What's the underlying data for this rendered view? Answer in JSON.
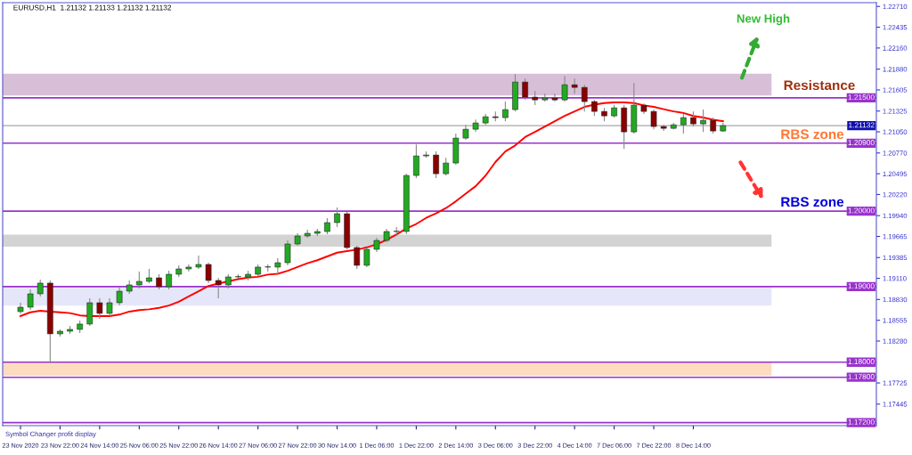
{
  "chart_data": {
    "type": "candlestick",
    "title": "EURUSD,H1  1.21132 1.21133 1.21132 1.21132",
    "categories": [
      "23 Nov 2020",
      null,
      null,
      null,
      "23 Nov 22:00",
      null,
      null,
      null,
      "24 Nov 14:00",
      null,
      null,
      null,
      "25 Nov 06:00",
      null,
      null,
      null,
      "25 Nov 22:00",
      null,
      null,
      null,
      "26 Nov 14:00",
      null,
      null,
      null,
      "27 Nov 06:00",
      null,
      null,
      null,
      "27 Nov 22:00",
      null,
      null,
      null,
      "30 Nov 14:00",
      null,
      null,
      null,
      "1 Dec 06:00",
      null,
      null,
      null,
      "1 Dec 22:00",
      null,
      null,
      null,
      "2 Dec 14:00",
      null,
      null,
      null,
      "3 Dec 06:00",
      null,
      null,
      null,
      "3 Dec 22:00",
      null,
      null,
      null,
      "4 Dec 14:00",
      null,
      null,
      null,
      "7 Dec 06:00",
      null,
      null,
      null,
      "7 Dec 22:00",
      null,
      null,
      null,
      "8 Dec 14:00",
      null,
      null,
      null,
      null,
      null,
      null,
      null,
      null,
      null,
      null,
      null,
      null,
      null,
      null,
      null,
      null,
      null,
      null
    ],
    "ohlc": [
      [
        1.1867,
        1.18787,
        1.18646,
        1.18728
      ],
      [
        1.18728,
        1.18964,
        1.18693,
        1.18905
      ],
      [
        1.18905,
        1.19094,
        1.1887,
        1.19047
      ],
      [
        1.19047,
        1.19082,
        1.17986,
        1.18375
      ],
      [
        1.18375,
        1.18434,
        1.1834,
        1.1841
      ],
      [
        1.1841,
        1.18481,
        1.18375,
        1.18434
      ],
      [
        1.18434,
        1.18552,
        1.18387,
        1.18505
      ],
      [
        1.18505,
        1.18846,
        1.18481,
        1.18787
      ],
      [
        1.18787,
        1.18846,
        1.18575,
        1.18646
      ],
      [
        1.18646,
        1.18846,
        1.18611,
        1.18787
      ],
      [
        1.18787,
        1.18999,
        1.18752,
        1.1894
      ],
      [
        1.1894,
        1.19082,
        1.18905,
        1.19023
      ],
      [
        1.19023,
        1.192,
        1.18976,
        1.1907
      ],
      [
        1.1907,
        1.19235,
        1.19047,
        1.19117
      ],
      [
        1.19117,
        1.19164,
        1.18964,
        1.18999
      ],
      [
        1.18999,
        1.19211,
        1.18964,
        1.19164
      ],
      [
        1.19164,
        1.19282,
        1.19129,
        1.19235
      ],
      [
        1.19235,
        1.19294,
        1.192,
        1.19259
      ],
      [
        1.19259,
        1.19412,
        1.19235,
        1.19294
      ],
      [
        1.19294,
        1.19317,
        1.19047,
        1.19082
      ],
      [
        1.19082,
        1.19117,
        1.18846,
        1.19023
      ],
      [
        1.19023,
        1.19164,
        1.18976,
        1.19129
      ],
      [
        1.19129,
        1.19164,
        1.19105,
        1.19129
      ],
      [
        1.19129,
        1.19211,
        1.19082,
        1.19164
      ],
      [
        1.19164,
        1.19294,
        1.19141,
        1.19259
      ],
      [
        1.19259,
        1.19294,
        1.192,
        1.19259
      ],
      [
        1.19259,
        1.19376,
        1.19164,
        1.19317
      ],
      [
        1.19317,
        1.19612,
        1.19282,
        1.19565
      ],
      [
        1.19565,
        1.19706,
        1.19541,
        1.19671
      ],
      [
        1.19671,
        1.19753,
        1.19647,
        1.19706
      ],
      [
        1.19706,
        1.19765,
        1.19671,
        1.1973
      ],
      [
        1.1973,
        1.19906,
        1.19694,
        1.19848
      ],
      [
        1.19848,
        1.20048,
        1.19789,
        1.19965
      ],
      [
        1.19965,
        1.19989,
        1.19494,
        1.19518
      ],
      [
        1.19518,
        1.19541,
        1.19235,
        1.19282
      ],
      [
        1.19282,
        1.19518,
        1.19259,
        1.19494
      ],
      [
        1.19494,
        1.19647,
        1.19459,
        1.19612
      ],
      [
        1.19612,
        1.19765,
        1.19588,
        1.1973
      ],
      [
        1.1973,
        1.19789,
        1.19671,
        1.1973
      ],
      [
        1.1973,
        1.20495,
        1.19694,
        1.20472
      ],
      [
        1.20472,
        1.20884,
        1.20437,
        1.20731
      ],
      [
        1.20731,
        1.2079,
        1.20707,
        1.20743
      ],
      [
        1.20743,
        1.2079,
        1.20437,
        1.20495
      ],
      [
        1.20495,
        1.20707,
        1.20472,
        1.20637
      ],
      [
        1.20637,
        1.21026,
        1.20613,
        1.20967
      ],
      [
        1.20967,
        1.21143,
        1.20943,
        1.21084
      ],
      [
        1.21084,
        1.21214,
        1.21049,
        1.21167
      ],
      [
        1.21167,
        1.21285,
        1.21143,
        1.21249
      ],
      [
        1.21249,
        1.2132,
        1.2119,
        1.21238
      ],
      [
        1.21238,
        1.2145,
        1.2119,
        1.21344
      ],
      [
        1.21344,
        1.21815,
        1.2132,
        1.21709
      ],
      [
        1.21709,
        1.21756,
        1.21473,
        1.21509
      ],
      [
        1.21509,
        1.21591,
        1.21403,
        1.21473
      ],
      [
        1.21473,
        1.21556,
        1.2145,
        1.21497
      ],
      [
        1.21497,
        1.21556,
        1.2145,
        1.21473
      ],
      [
        1.21473,
        1.21791,
        1.2145,
        1.21673
      ],
      [
        1.21673,
        1.21756,
        1.21556,
        1.21638
      ],
      [
        1.21638,
        1.21673,
        1.2132,
        1.2145
      ],
      [
        1.2145,
        1.21473,
        1.21261,
        1.2132
      ],
      [
        1.2132,
        1.21367,
        1.2119,
        1.21261
      ],
      [
        1.21261,
        1.21403,
        1.21238,
        1.21367
      ],
      [
        1.21367,
        1.21403,
        1.20825,
        1.21049
      ],
      [
        1.21049,
        1.21697,
        1.21026,
        1.21403
      ],
      [
        1.21403,
        1.21426,
        1.21285,
        1.2132
      ],
      [
        1.2132,
        1.21344,
        1.21084,
        1.2112
      ],
      [
        1.2112,
        1.21143,
        1.21061,
        1.21096
      ],
      [
        1.21096,
        1.21167,
        1.21084,
        1.21143
      ],
      [
        1.21143,
        1.21285,
        1.21026,
        1.21238
      ],
      [
        1.21238,
        1.2132,
        1.2112,
        1.21155
      ],
      [
        1.21155,
        1.21344,
        1.21049,
        1.21202
      ],
      [
        1.21202,
        1.21238,
        1.21026,
        1.21061
      ],
      [
        1.21061,
        1.21167,
        1.21049,
        1.21132
      ],
      null,
      null,
      null,
      null,
      null,
      null,
      null,
      null,
      null,
      null,
      null,
      null,
      null,
      null,
      null
    ],
    "series": [
      {
        "type": "line",
        "color": "#ff0000",
        "values": [
          1.1861,
          1.1866,
          1.1868,
          1.1867,
          1.1866,
          1.1865,
          1.1862,
          1.1861,
          1.1861,
          1.1861,
          1.1863,
          1.1867,
          1.1869,
          1.187,
          1.1872,
          1.1875,
          1.188,
          1.1887,
          1.1894,
          1.1901,
          1.1904,
          1.1907,
          1.191,
          1.1912,
          1.1913,
          1.1916,
          1.1917,
          1.1921,
          1.1926,
          1.1931,
          1.1935,
          1.194,
          1.1945,
          1.1947,
          1.1949,
          1.1952,
          1.1956,
          1.1962,
          1.1969,
          1.1977,
          1.1983,
          1.1991,
          1.1997,
          1.2004,
          1.2013,
          1.2023,
          1.2033,
          1.2047,
          1.2065,
          1.2079,
          1.2087,
          1.2098,
          1.2105,
          1.2112,
          1.2119,
          1.2126,
          1.2132,
          1.2138,
          1.2141,
          1.2143,
          1.2144,
          1.2144,
          1.2143,
          1.214,
          1.2138,
          1.2135,
          1.2132,
          1.213,
          1.2126,
          1.2124,
          1.2121,
          1.2119,
          null,
          null,
          null,
          null,
          null,
          null,
          null,
          null,
          null,
          null,
          null,
          null,
          null,
          null,
          null
        ]
      }
    ],
    "ylim": [
      1.1716,
      1.2276
    ],
    "yticks": [
      {
        "value": 1.2271,
        "label": "1.22710"
      },
      {
        "value": 1.22435,
        "label": "1.22435"
      },
      {
        "value": 1.2216,
        "label": "1.22160"
      },
      {
        "value": 1.2188,
        "label": "1.21880"
      },
      {
        "value": 1.21605,
        "label": "1.21605"
      },
      {
        "value": 1.21325,
        "label": "1.21325"
      },
      {
        "value": 1.2105,
        "label": "1.21050"
      },
      {
        "value": 1.2077,
        "label": "1.20770"
      },
      {
        "value": 1.20495,
        "label": "1.20495"
      },
      {
        "value": 1.2022,
        "label": "1.20220"
      },
      {
        "value": 1.1994,
        "label": "1.19940"
      },
      {
        "value": 1.19665,
        "label": "1.19665"
      },
      {
        "value": 1.19385,
        "label": "1.19385"
      },
      {
        "value": 1.1911,
        "label": "1.19110"
      },
      {
        "value": 1.1883,
        "label": "1.18830"
      },
      {
        "value": 1.18555,
        "label": "1.18555"
      },
      {
        "value": 1.1828,
        "label": "1.18280"
      },
      {
        "value": 1.17725,
        "label": "1.17725"
      },
      {
        "value": 1.17445,
        "label": "1.17445"
      }
    ],
    "ref_lines": [
      {
        "axis": "y",
        "value": 1.215,
        "label": "1.21500",
        "color": "#9933cc"
      },
      {
        "axis": "y",
        "value": 1.21132,
        "label": "1.21132",
        "color": "#c0c0c0"
      },
      {
        "axis": "y",
        "value": 1.209,
        "label": "1.20900",
        "color": "#9933cc"
      },
      {
        "axis": "y",
        "value": 1.2,
        "label": "1.20000",
        "color": "#9933cc"
      },
      {
        "axis": "y",
        "value": 1.19,
        "label": "1.19000",
        "color": "#9933cc"
      },
      {
        "axis": "y",
        "value": 1.18,
        "label": "1.18000",
        "color": "#9933cc"
      },
      {
        "axis": "y",
        "value": 1.178,
        "label": "1.17800",
        "color": "#9933cc"
      },
      {
        "axis": "y",
        "value": 1.172,
        "label": "1.17200",
        "color": "#9933cc"
      }
    ],
    "bands": [
      {
        "axis": "y",
        "from": 1.2153,
        "to": 1.2182,
        "color": "#d8bfd8"
      },
      {
        "axis": "y",
        "from": 1.1953,
        "to": 1.1969,
        "color": "#d3d3d3"
      },
      {
        "axis": "y",
        "from": 1.1875,
        "to": 1.19,
        "color": "#e6e6fa"
      },
      {
        "axis": "y",
        "from": 1.1782,
        "to": 1.18,
        "color": "#fcdcbf"
      }
    ],
    "annotations": [
      "New High",
      "Resistance",
      "RBS zone",
      "RBS zone",
      "Symbol Changer profit display"
    ]
  }
}
